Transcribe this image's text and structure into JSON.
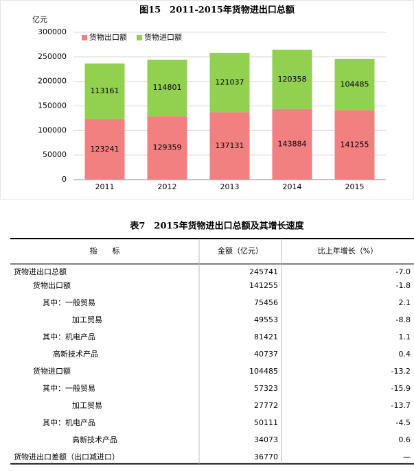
{
  "chart_data": {
    "type": "stacked_bar",
    "title": "图15　2011-2015年货物进出口总额",
    "y_label": "亿元",
    "categories": [
      "2011",
      "2012",
      "2013",
      "2014",
      "2015"
    ],
    "series": [
      {
        "name": "货物出口额",
        "color": "#f28080",
        "values": [
          123241,
          129359,
          137131,
          143884,
          141255
        ]
      },
      {
        "name": "货物进口额",
        "color": "#92d050",
        "values": [
          113161,
          114801,
          121037,
          120358,
          104485
        ]
      }
    ],
    "ylim": [
      0,
      300000
    ],
    "yticks": [
      0,
      50000,
      100000,
      150000,
      200000,
      250000,
      300000
    ],
    "grid": true,
    "legend": "top-left"
  },
  "table": {
    "title": "表7　2015年货物进出口总额及其增长速度",
    "header": [
      "指　　标",
      "金额（亿元）",
      "比上年增长（%）"
    ],
    "rows": [
      [
        "货物进出口总额",
        "245741",
        "-7.0"
      ],
      [
        "货物出口额",
        "141255",
        "-1.8"
      ],
      [
        "其中：一般贸易",
        "75456",
        "2.1"
      ],
      [
        "加工贸易",
        "49553",
        "-8.8"
      ],
      [
        "其中：机电产品",
        "81421",
        "1.1"
      ],
      [
        "高新技术产品",
        "40737",
        "0.4"
      ],
      [
        "货物进口额",
        "104485",
        "-13.2"
      ],
      [
        "其中：一般贸易",
        "57323",
        "-15.9"
      ],
      [
        "加工贸易",
        "27772",
        "-13.7"
      ],
      [
        "其中：机电产品",
        "50111",
        "-4.5"
      ],
      [
        "高新技术产品",
        "34073",
        "0.6"
      ],
      [
        "货物进出口差额（出口减进口）",
        "36770",
        "—"
      ]
    ]
  }
}
